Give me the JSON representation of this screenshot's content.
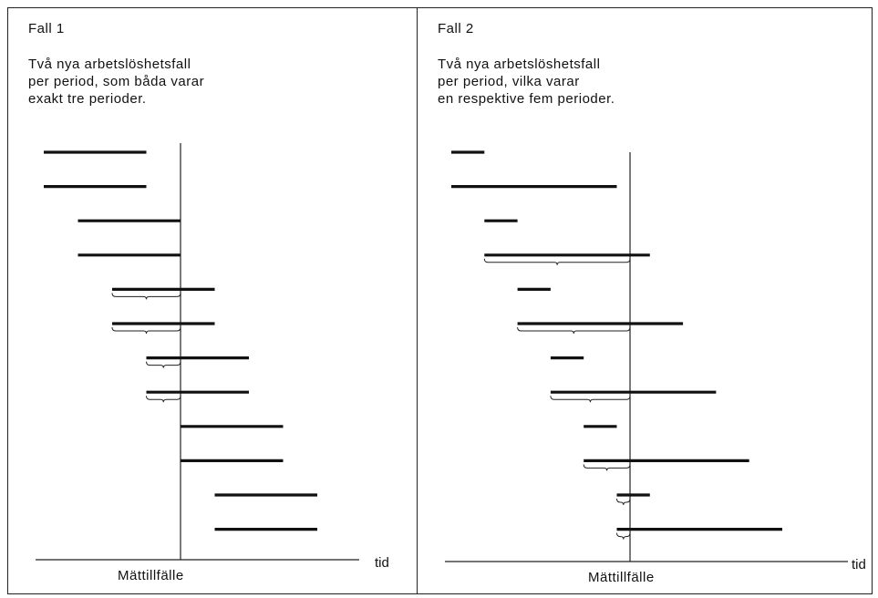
{
  "panels": [
    {
      "title": "Fall 1",
      "description": [
        "Två nya arbetslöshetsfall",
        "per period, som båda varar",
        "exakt tre perioder."
      ],
      "axis_label": "Mättillfälle",
      "time_label": "tid",
      "chart_data": {
        "type": "gantt",
        "measurement_point": 4,
        "spells": [
          {
            "start": 0,
            "end": 3
          },
          {
            "start": 0,
            "end": 3
          },
          {
            "start": 1,
            "end": 4
          },
          {
            "start": 1,
            "end": 4
          },
          {
            "start": 2,
            "end": 5
          },
          {
            "start": 2,
            "end": 5
          },
          {
            "start": 3,
            "end": 6
          },
          {
            "start": 3,
            "end": 6
          },
          {
            "start": 4,
            "end": 7
          },
          {
            "start": 4,
            "end": 7
          },
          {
            "start": 5,
            "end": 8
          },
          {
            "start": 5,
            "end": 8
          }
        ]
      }
    },
    {
      "title": "Fall 2",
      "description": [
        "Två nya arbetslöshetsfall",
        "per period, vilka varar",
        "en respektive fem perioder."
      ],
      "axis_label": "Mättillfälle",
      "time_label": "tid",
      "chart_data": {
        "type": "gantt",
        "measurement_point": 5.4,
        "spells": [
          {
            "start": 0,
            "end": 1
          },
          {
            "start": 0,
            "end": 5
          },
          {
            "start": 1,
            "end": 2
          },
          {
            "start": 1,
            "end": 6
          },
          {
            "start": 2,
            "end": 3
          },
          {
            "start": 2,
            "end": 7
          },
          {
            "start": 3,
            "end": 4
          },
          {
            "start": 3,
            "end": 8
          },
          {
            "start": 4,
            "end": 5
          },
          {
            "start": 4,
            "end": 9
          },
          {
            "start": 5,
            "end": 6
          },
          {
            "start": 5,
            "end": 10
          }
        ]
      }
    }
  ]
}
